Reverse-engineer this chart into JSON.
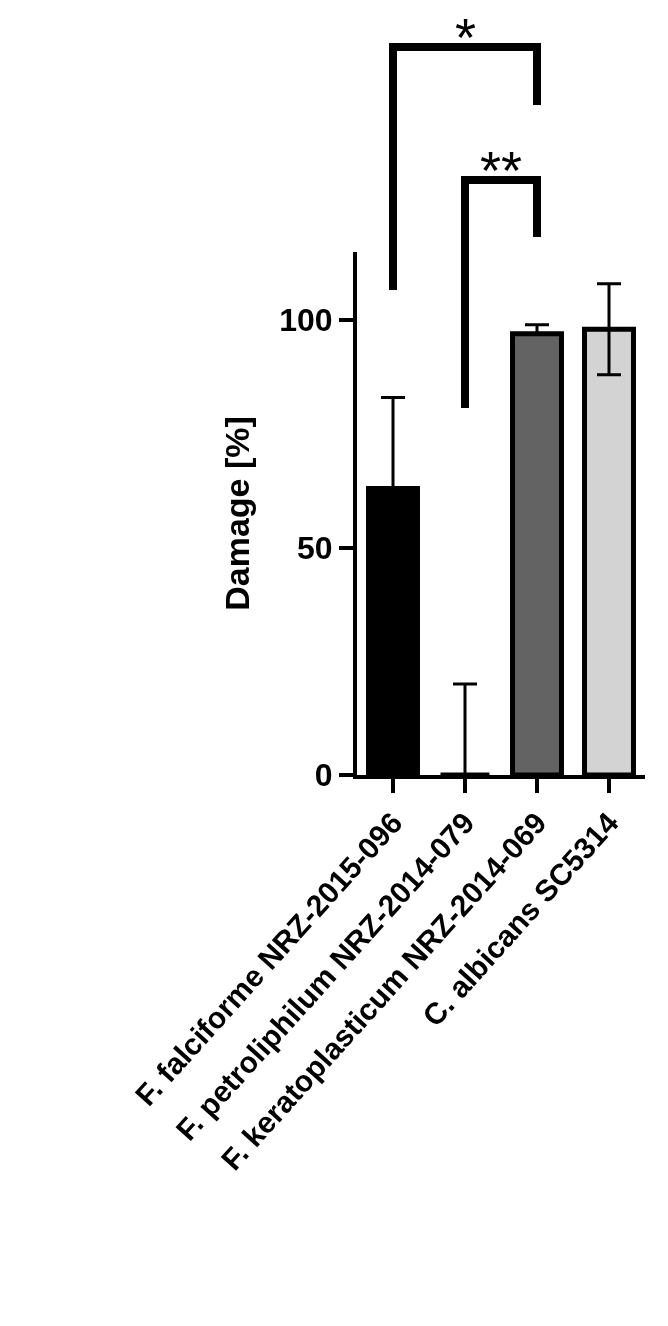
{
  "chart_data": {
    "type": "bar",
    "ylabel": "Damage [%]",
    "categories": [
      "F. falciforme NRZ-2015-096",
      "F. petroliphilum NRZ-2014-079",
      "F. keratoplasticum NRZ-2014-069",
      "C. albicans SC5314"
    ],
    "values": [
      63,
      0,
      97,
      98
    ],
    "errors": [
      [
        63,
        83
      ],
      [
        0,
        20
      ],
      [
        97,
        99
      ],
      [
        88,
        108
      ]
    ],
    "colors": [
      "#000000",
      "#000000",
      "#636363",
      "#d3d3d3"
    ],
    "ylim": [
      0,
      115
    ],
    "yticks": [
      0,
      50,
      100
    ],
    "grid": false,
    "annotations": [
      "*",
      "**"
    ]
  }
}
